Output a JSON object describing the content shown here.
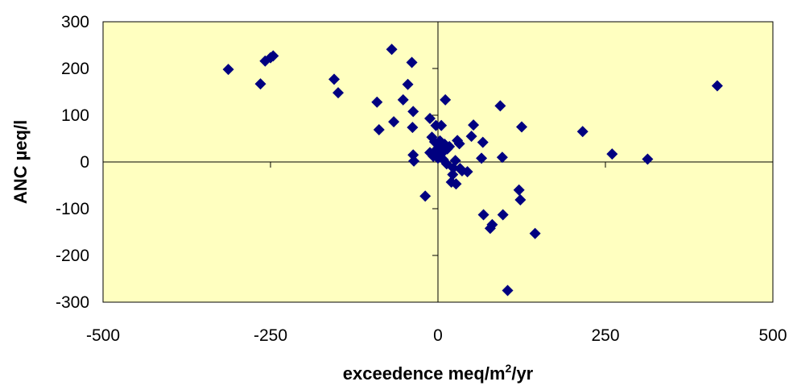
{
  "chart_data": {
    "type": "scatter",
    "title": "",
    "xlabel": "exceedence meq/m",
    "xlabel_sup": "2",
    "xlabel_suffix": "/yr",
    "ylabel": "ANC µeq/l",
    "xlim": [
      -500,
      500
    ],
    "ylim": [
      -300,
      300
    ],
    "xticks": [
      -500,
      -250,
      0,
      250,
      500
    ],
    "yticks": [
      300,
      200,
      100,
      0,
      -100,
      -200,
      -300
    ],
    "xtick_labels": [
      "-500",
      "-250",
      "0",
      "250",
      "500"
    ],
    "ytick_labels": [
      "300",
      "200",
      "100",
      "0",
      "-100",
      "-200",
      "-300"
    ],
    "grid": false,
    "legend": "none",
    "colors": {
      "plot_bg": "#FFFFC0",
      "marker": "#000080",
      "axis": "#000000"
    },
    "series": [
      {
        "marker": "diamond",
        "points": [
          [
            -313,
            198
          ],
          [
            -265,
            167
          ],
          [
            -258,
            216
          ],
          [
            -250,
            223
          ],
          [
            -246,
            227
          ],
          [
            -155,
            177
          ],
          [
            -149,
            148
          ],
          [
            -91,
            128
          ],
          [
            -88,
            69
          ],
          [
            -69,
            241
          ],
          [
            -66,
            86
          ],
          [
            -39,
            213
          ],
          [
            -52,
            133
          ],
          [
            -45,
            166
          ],
          [
            -37,
            108
          ],
          [
            -38,
            74
          ],
          [
            -37,
            15
          ],
          [
            -36,
            2
          ],
          [
            -19,
            -73
          ],
          [
            -12,
            93
          ],
          [
            -9,
            53
          ],
          [
            -12,
            20
          ],
          [
            -5,
            43
          ],
          [
            -7,
            12
          ],
          [
            -3,
            78
          ],
          [
            -2,
            27
          ],
          [
            0,
            8
          ],
          [
            3,
            45
          ],
          [
            3,
            33
          ],
          [
            5,
            78
          ],
          [
            6,
            19
          ],
          [
            8,
            5
          ],
          [
            10,
            38
          ],
          [
            11,
            133
          ],
          [
            13,
            -4
          ],
          [
            14,
            28
          ],
          [
            17,
            33
          ],
          [
            20,
            -43
          ],
          [
            22,
            -27
          ],
          [
            23,
            -13
          ],
          [
            26,
            3
          ],
          [
            27,
            -47
          ],
          [
            29,
            46
          ],
          [
            32,
            39
          ],
          [
            33,
            -14
          ],
          [
            36,
            -19
          ],
          [
            44,
            -21
          ],
          [
            50,
            55
          ],
          [
            53,
            79
          ],
          [
            65,
            8
          ],
          [
            67,
            42
          ],
          [
            68,
            -113
          ],
          [
            78,
            -142
          ],
          [
            81,
            -134
          ],
          [
            93,
            120
          ],
          [
            96,
            10
          ],
          [
            97,
            -113
          ],
          [
            104,
            -275
          ],
          [
            121,
            -60
          ],
          [
            123,
            -81
          ],
          [
            125,
            75
          ],
          [
            145,
            -153
          ],
          [
            216,
            65
          ],
          [
            260,
            17
          ],
          [
            313,
            6
          ],
          [
            417,
            163
          ]
        ]
      }
    ]
  }
}
